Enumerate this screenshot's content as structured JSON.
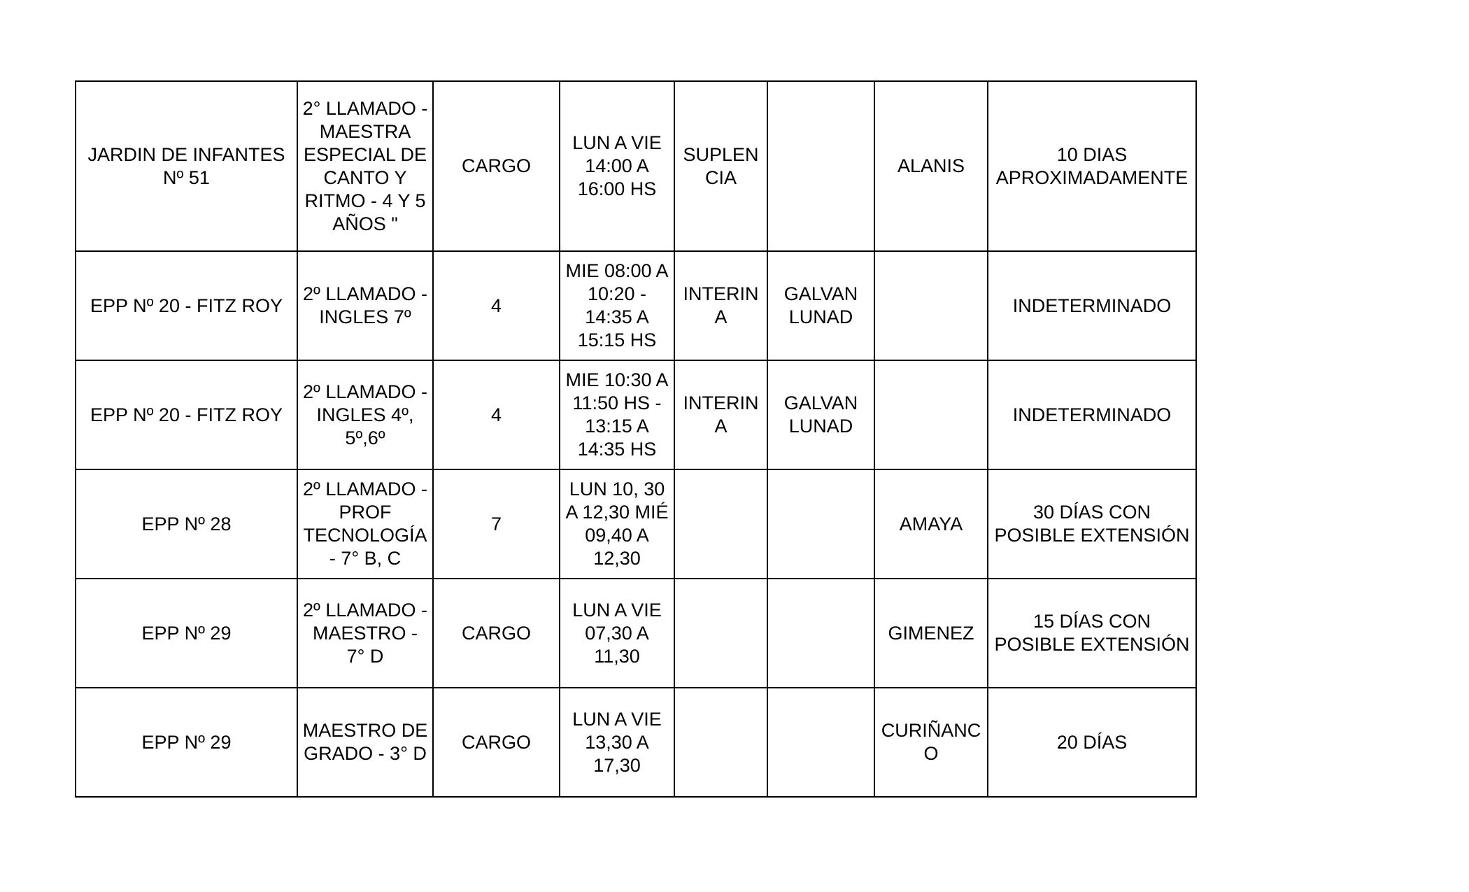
{
  "rows": [
    [
      "JARDIN DE INFANTES\nNº 51",
      "2° LLAMADO -\nMAESTRA\nESPECIAL DE\nCANTO Y\nRITMO - 4 Y 5\nAÑOS \"",
      "CARGO",
      "LUN  A VIE\n14:00 A\n16:00 HS",
      "SUPLEN\nCIA",
      "",
      "ALANIS",
      "10 DIAS\nAPROXIMADAMENTE"
    ],
    [
      "EPP Nº 20 - FITZ ROY",
      "2º LLAMADO -\nINGLES 7º",
      "4",
      "MIE 08:00 A\n10:20 -\n14:35 A\n15:15 HS",
      "INTERIN\nA",
      "GALVAN\nLUNAD",
      "",
      "INDETERMINADO"
    ],
    [
      "EPP Nº 20 - FITZ ROY",
      "2º LLAMADO -\nINGLES 4º,\n5º,6º",
      "4",
      "MIE 10:30 A\n11:50 HS -\n13:15 A\n14:35 HS",
      "INTERIN\nA",
      "GALVAN\nLUNAD",
      "",
      "INDETERMINADO"
    ],
    [
      "EPP Nº 28",
      "2º LLAMADO -\nPROF\nTECNOLOGÍA\n- 7° B, C",
      "7",
      "LUN 10, 30\nA 12,30 MIÉ\n09,40 A\n12,30",
      "",
      "",
      "AMAYA",
      "30 DÍAS CON\nPOSIBLE EXTENSIÓN"
    ],
    [
      "EPP Nº 29",
      "2º LLAMADO -\nMAESTRO -\n7° D",
      "CARGO",
      "LUN A VIE\n07,30 A\n11,30",
      "",
      "",
      "GIMENEZ",
      "15 DÍAS CON\nPOSIBLE EXTENSIÓN"
    ],
    [
      "EPP Nº 29",
      "MAESTRO DE\nGRADO - 3° D",
      "CARGO",
      "LUN A VIE\n13,30 A\n17,30",
      "",
      "",
      "CURIÑANC\nO",
      "20 DÍAS"
    ]
  ]
}
